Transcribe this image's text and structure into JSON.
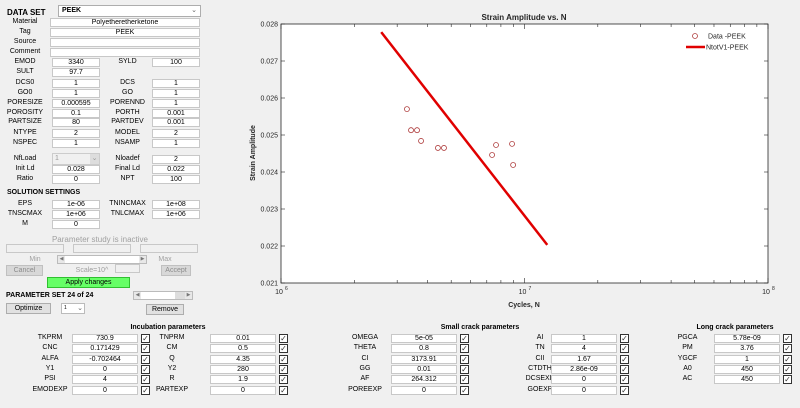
{
  "dataset": {
    "label": "DATA SET",
    "selected": "PEEK",
    "material_label": "Material",
    "material": "Polyetheretherketone",
    "tag_label": "Tag",
    "tag": "PEEK",
    "source_label": "Source",
    "source": "",
    "comment_label": "Comment",
    "comment": ""
  },
  "props": [
    {
      "l1": "EMOD",
      "v1": "3340",
      "l2": "SYLD",
      "v2": "100"
    },
    {
      "l1": "SULT",
      "v1": "97.7",
      "l2": "",
      "v2": null
    },
    {
      "l1": "DCS0",
      "v1": "1",
      "l2": "DCS",
      "v2": "1"
    },
    {
      "l1": "GO0",
      "v1": "1",
      "l2": "GO",
      "v2": "1"
    },
    {
      "l1": "PORESIZE",
      "v1": "0.000595",
      "l2": "PORENND",
      "v2": "1"
    },
    {
      "l1": "POROSITY",
      "v1": "0.1",
      "l2": "PORTH",
      "v2": "0.001"
    },
    {
      "l1": "PARTSIZE",
      "v1": "80",
      "l2": "PARTDEV",
      "v2": "0.001"
    }
  ],
  "model": {
    "ntype_label": "NTYPE",
    "ntype": "2",
    "model_label": "MODEL",
    "model": "2",
    "nspec_label": "NSPEC",
    "nspec": "1",
    "nsamp_label": "NSAMP",
    "nsamp": "1",
    "nfload_label": "NfLoad",
    "nfload": "1",
    "nloadef_label": "Nloadef",
    "nloadef": "2",
    "initld_label": "Init Ld",
    "initld": "0.028",
    "finalld_label": "Final Ld",
    "finalld": "0.022",
    "ratio_label": "Ratio",
    "ratio": "0",
    "npt_label": "NPT",
    "npt": "100"
  },
  "solution": {
    "title": "SOLUTION SETTINGS",
    "eps_label": "EPS",
    "eps": "1e-06",
    "tnincmax_label": "TNINCMAX",
    "tnincmax": "1e+08",
    "tnscmax_label": "TNSCMAX",
    "tnscmax": "1e+06",
    "tnlcmax_label": "TNLCMAX",
    "tnlcmax": "1e+06",
    "m_label": "M",
    "m": "0"
  },
  "param_study": {
    "status": "Parameter study is inactive",
    "min_label": "Min",
    "max_label": "Max",
    "cancel": "Cancel",
    "scale": "Scale=10^",
    "accept": "Accept",
    "apply": "Apply changes",
    "set_label": "PARAMETER SET 24 of 24",
    "optimize": "Optimize",
    "opt_value": "1",
    "remove": "Remove"
  },
  "colors": {
    "apply_green": "#66ff66",
    "line_red": "#e00000",
    "marker": "#b04040"
  },
  "incubation": {
    "title": "Incubation parameters",
    "col1": [
      {
        "l": "TKPRM",
        "v": "730.9"
      },
      {
        "l": "CNC",
        "v": "0.171429"
      },
      {
        "l": "ALFA",
        "v": "-0.702464"
      },
      {
        "l": "Y1",
        "v": "0"
      },
      {
        "l": "PSI",
        "v": "4"
      },
      {
        "l": "EMODEXP",
        "v": "0"
      }
    ],
    "col2": [
      {
        "l": "TNPRM",
        "v": "0.01"
      },
      {
        "l": "CM",
        "v": "0.5"
      },
      {
        "l": "Q",
        "v": "4.35"
      },
      {
        "l": "Y2",
        "v": "280"
      },
      {
        "l": "R",
        "v": "1.9"
      },
      {
        "l": "PARTEXP",
        "v": "0"
      }
    ]
  },
  "small_crack": {
    "title": "Small crack parameters",
    "col1": [
      {
        "l": "OMEGA",
        "v": "5e-05"
      },
      {
        "l": "THETA",
        "v": "0.8"
      },
      {
        "l": "CI",
        "v": "3173.91"
      },
      {
        "l": "GG",
        "v": "0.01"
      },
      {
        "l": "AF",
        "v": "264.312"
      },
      {
        "l": "POREEXP",
        "v": "0"
      }
    ],
    "col2": [
      {
        "l": "AI",
        "v": "1"
      },
      {
        "l": "TN",
        "v": "4"
      },
      {
        "l": "CII",
        "v": "1.67"
      },
      {
        "l": "CTDTH",
        "v": "2.86e-09"
      },
      {
        "l": "DCSEXP",
        "v": "0"
      },
      {
        "l": "GOEXP",
        "v": "0"
      }
    ]
  },
  "long_crack": {
    "title": "Long crack parameters",
    "col1": [
      {
        "l": "PGCA",
        "v": "5.78e-09"
      },
      {
        "l": "PM",
        "v": "3.76"
      },
      {
        "l": "YGCF",
        "v": "1"
      },
      {
        "l": "A0",
        "v": "450"
      },
      {
        "l": "AC",
        "v": "450"
      }
    ]
  },
  "chart_data": {
    "type": "scatter",
    "title": "Strain Amplitude vs. N",
    "xlabel": "Cycles, N",
    "ylabel": "Strain Amplitude",
    "xscale": "log",
    "xlim": [
      1000000,
      100000000
    ],
    "ylim": [
      0.021,
      0.028
    ],
    "xticks": [
      "10^6",
      "10^7",
      "10^8"
    ],
    "yticks": [
      "0.021",
      "0.022",
      "0.023",
      "0.024",
      "0.025",
      "0.026",
      "0.027",
      "0.028"
    ],
    "grid": false,
    "legend_position": "top-right",
    "series": [
      {
        "name": "Data -PEEK",
        "kind": "markers",
        "marker": "circle",
        "x": [
          3290000,
          3420000,
          3620000,
          3760000,
          4410000,
          4670000,
          7360000,
          7640000,
          8890000,
          8980000
        ],
        "y": [
          0.0257,
          0.02513,
          0.02513,
          0.02484,
          0.02465,
          0.02465,
          0.02446,
          0.02473,
          0.02476,
          0.02419
        ]
      },
      {
        "name": "NtotV1-PEEK",
        "kind": "line",
        "x": [
          2580000,
          12400000
        ],
        "y": [
          0.02778,
          0.02203
        ]
      }
    ]
  }
}
